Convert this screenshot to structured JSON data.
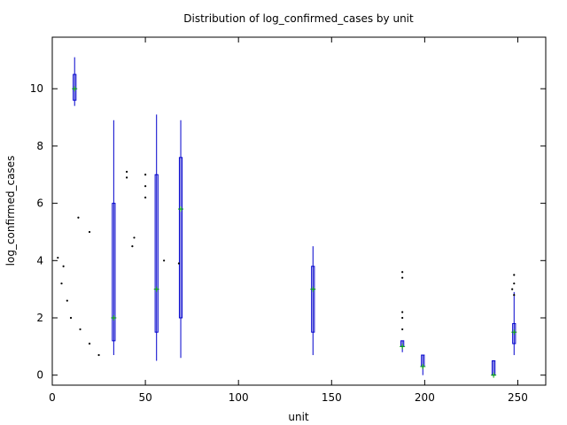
{
  "chart_data": {
    "type": "box",
    "title": "Distribution of log_confirmed_cases by unit",
    "xlabel": "unit",
    "ylabel": "log_confirmed_cases",
    "xlim": [
      0,
      265
    ],
    "ylim": [
      -0.35,
      11.8
    ],
    "x_ticks": [
      0,
      50,
      100,
      150,
      200,
      250
    ],
    "y_ticks": [
      0,
      2,
      4,
      6,
      8,
      10
    ],
    "grid": false,
    "legend": "none",
    "colors": {
      "box": "#0000cc",
      "median": "#00aa00",
      "outlier": "#000000",
      "axis": "#000000"
    },
    "boxes": [
      {
        "x": 12,
        "low": 9.4,
        "q1": 9.6,
        "median": 10.0,
        "q3": 10.5,
        "high": 11.1
      },
      {
        "x": 33,
        "low": 0.7,
        "q1": 1.2,
        "median": 2.0,
        "q3": 6.0,
        "high": 8.9
      },
      {
        "x": 56,
        "low": 0.5,
        "q1": 1.5,
        "median": 3.0,
        "q3": 7.0,
        "high": 9.1
      },
      {
        "x": 69,
        "low": 0.6,
        "q1": 2.0,
        "median": 5.8,
        "q3": 7.6,
        "high": 8.9
      },
      {
        "x": 248,
        "low": 0.7,
        "q1": 1.1,
        "median": 1.5,
        "q3": 1.8,
        "high": 2.9
      },
      {
        "x": 237,
        "low": 0.0,
        "q1": 0.0,
        "median": 0.0,
        "q3": 0.5,
        "high": 0.5
      },
      {
        "x": 140,
        "low": 0.7,
        "q1": 1.5,
        "median": 3.0,
        "q3": 3.8,
        "high": 4.5
      },
      {
        "x": 188,
        "low": 0.8,
        "q1": 1.0,
        "median": 1.0,
        "q3": 1.2,
        "high": 1.2
      },
      {
        "x": 199,
        "low": 0.0,
        "q1": 0.3,
        "median": 0.3,
        "q3": 0.7,
        "high": 0.7
      }
    ],
    "outliers": [
      {
        "x": 40,
        "y": 7.1
      },
      {
        "x": 40,
        "y": 6.9
      },
      {
        "x": 50,
        "y": 7.0
      },
      {
        "x": 50,
        "y": 6.6
      },
      {
        "x": 50,
        "y": 6.2
      },
      {
        "x": 14,
        "y": 5.5
      },
      {
        "x": 20,
        "y": 5.0
      },
      {
        "x": 44,
        "y": 4.8
      },
      {
        "x": 43,
        "y": 4.5
      },
      {
        "x": 60,
        "y": 4.0
      },
      {
        "x": 68,
        "y": 3.9
      },
      {
        "x": 188,
        "y": 3.6
      },
      {
        "x": 188,
        "y": 3.4
      },
      {
        "x": 248,
        "y": 3.5
      },
      {
        "x": 248,
        "y": 3.2
      },
      {
        "x": 247,
        "y": 3.0
      },
      {
        "x": 248,
        "y": 2.8
      },
      {
        "x": 188,
        "y": 2.2
      },
      {
        "x": 188,
        "y": 2.0
      },
      {
        "x": 188,
        "y": 1.6
      },
      {
        "x": 5,
        "y": 3.2
      },
      {
        "x": 8,
        "y": 2.6
      },
      {
        "x": 10,
        "y": 2.0
      },
      {
        "x": 15,
        "y": 1.6
      },
      {
        "x": 20,
        "y": 1.1
      },
      {
        "x": 25,
        "y": 0.7
      },
      {
        "x": 3,
        "y": 4.1
      },
      {
        "x": 6,
        "y": 3.8
      }
    ]
  }
}
